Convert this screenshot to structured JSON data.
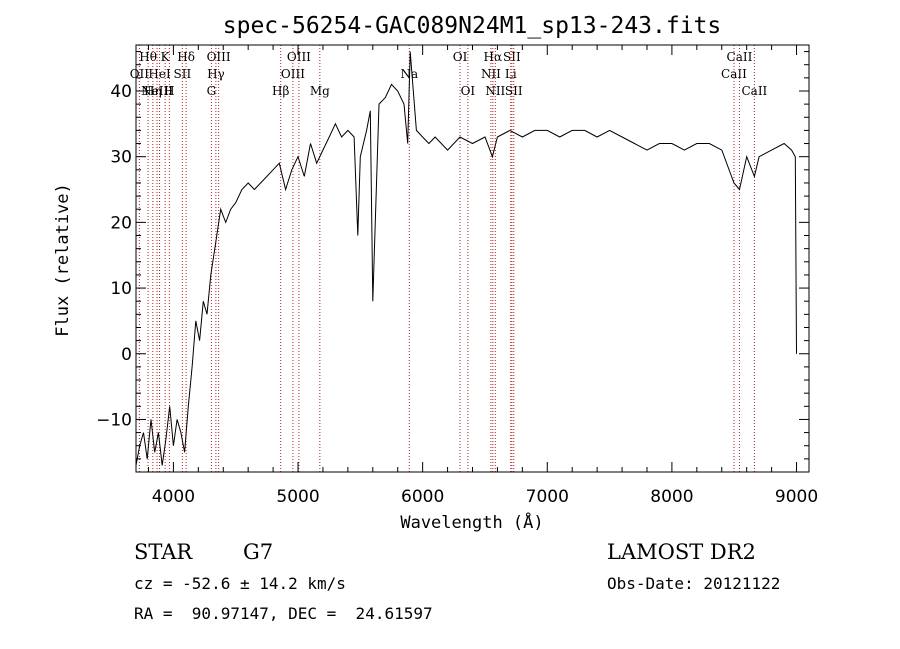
{
  "chart_data": {
    "type": "line",
    "title": "spec-56254-GAC089N24M1_sp13-243.fits",
    "xlabel": "Wavelength (Å)",
    "ylabel": "Flux (relative)",
    "xlim": [
      3700,
      9100
    ],
    "ylim": [
      -18,
      47
    ],
    "xticks": [
      4000,
      5000,
      6000,
      7000,
      8000,
      9000
    ],
    "yticks": [
      -10,
      0,
      10,
      20,
      30,
      40
    ],
    "series": [
      {
        "x": [
          3700,
          3730,
          3760,
          3790,
          3820,
          3850,
          3880,
          3910,
          3940,
          3970,
          4000,
          4030,
          4060,
          4090,
          4120,
          4150,
          4180,
          4210,
          4240,
          4270,
          4300,
          4340,
          4380,
          4420,
          4460,
          4500,
          4550,
          4600,
          4650,
          4700,
          4750,
          4800,
          4850,
          4900,
          4950,
          5000,
          5050,
          5100,
          5150,
          5200,
          5250,
          5300,
          5350,
          5400,
          5450,
          5480,
          5500,
          5550,
          5580,
          5600,
          5650,
          5700,
          5750,
          5800,
          5850,
          5880,
          5900,
          5950,
          6000,
          6050,
          6100,
          6200,
          6300,
          6400,
          6500,
          6560,
          6600,
          6700,
          6800,
          6900,
          7000,
          7100,
          7200,
          7300,
          7400,
          7500,
          7600,
          7700,
          7800,
          7900,
          8000,
          8100,
          8200,
          8300,
          8400,
          8498,
          8542,
          8600,
          8662,
          8700,
          8800,
          8900,
          8960,
          8990,
          9000
        ],
        "y": [
          -17,
          -14,
          -12,
          -16,
          -10,
          -15,
          -12,
          -17,
          -13,
          -8,
          -14,
          -10,
          -12,
          -15,
          -8,
          -2,
          5,
          2,
          8,
          6,
          12,
          17,
          22,
          20,
          22,
          23,
          25,
          26,
          25,
          26,
          27,
          28,
          29,
          25,
          28,
          30,
          27,
          32,
          29,
          31,
          33,
          35,
          33,
          34,
          33,
          18,
          30,
          34,
          37,
          8,
          38,
          39,
          41,
          40,
          38,
          32,
          46,
          34,
          33,
          32,
          33,
          31,
          33,
          32,
          33,
          30,
          33,
          34,
          33,
          34,
          34,
          33,
          34,
          34,
          33,
          34,
          33,
          32,
          31,
          32,
          32,
          31,
          32,
          32,
          31,
          26,
          25,
          30,
          27,
          30,
          31,
          32,
          31,
          30,
          0
        ]
      }
    ],
    "lines": [
      {
        "wl": 3797,
        "label": "Hθ",
        "row": 0
      },
      {
        "wl": 3727,
        "label": "OII",
        "row": 1
      },
      {
        "wl": 3835,
        "label": "Hη",
        "row": 2
      },
      {
        "wl": 3869,
        "label": "NeIII",
        "row": 2
      },
      {
        "wl": 3889,
        "label": "HeI",
        "row": 1
      },
      {
        "wl": 3934,
        "label": "K",
        "row": 0
      },
      {
        "wl": 3968,
        "label": "H",
        "row": 2
      },
      {
        "wl": 4072,
        "label": "SII",
        "row": 1
      },
      {
        "wl": 4102,
        "label": "Hδ",
        "row": 0
      },
      {
        "wl": 4305,
        "label": "G",
        "row": 2
      },
      {
        "wl": 4341,
        "label": "Hγ",
        "row": 1
      },
      {
        "wl": 4363,
        "label": "OIII",
        "row": 0
      },
      {
        "wl": 4861,
        "label": "Hβ",
        "row": 2
      },
      {
        "wl": 4959,
        "label": "OIII",
        "row": 1
      },
      {
        "wl": 5007,
        "label": "OIII",
        "row": 0
      },
      {
        "wl": 5175,
        "label": "Mg",
        "row": 2
      },
      {
        "wl": 5893,
        "label": "Na",
        "row": 1
      },
      {
        "wl": 6300,
        "label": "OI",
        "row": 0
      },
      {
        "wl": 6363,
        "label": "OI",
        "row": 2
      },
      {
        "wl": 6548,
        "label": "NII",
        "row": 1
      },
      {
        "wl": 6563,
        "label": "Hα",
        "row": 0
      },
      {
        "wl": 6583,
        "label": "NII",
        "row": 2
      },
      {
        "wl": 6707,
        "label": "Li",
        "row": 1
      },
      {
        "wl": 6716,
        "label": "SII",
        "row": 0
      },
      {
        "wl": 6731,
        "label": "SII",
        "row": 2
      },
      {
        "wl": 8498,
        "label": "CaII",
        "row": 1
      },
      {
        "wl": 8542,
        "label": "CaII",
        "row": 0
      },
      {
        "wl": 8662,
        "label": "CaII",
        "row": 2
      }
    ],
    "line_color": "#b22222",
    "grid": false
  },
  "info": {
    "class": "STAR",
    "subclass": "G7",
    "survey": "LAMOST DR2",
    "cz": "cz = -52.6 ± 14.2 km/s",
    "obs_date": "Obs-Date: 20121122",
    "radec": "RA =  90.97147, DEC =  24.61597"
  }
}
